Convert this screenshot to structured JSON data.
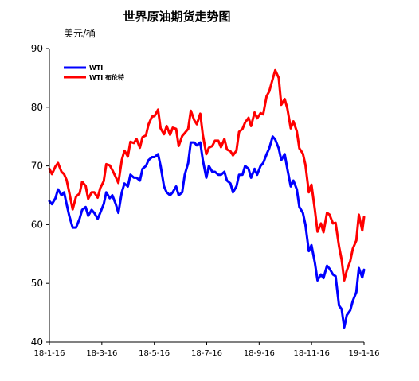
{
  "chart_data": {
    "type": "line",
    "title": "世界原油期货走势图",
    "ylabel": "美元/桶",
    "xlabel": "",
    "ylim": [
      40,
      90
    ],
    "yticks": [
      40,
      50,
      60,
      70,
      80,
      90
    ],
    "xlim": [
      "2018-01-16",
      "2019-01-16"
    ],
    "xticks": [
      "18-1-16",
      "18-3-16",
      "18-5-16",
      "18-7-16",
      "18-9-16",
      "18-11-16",
      "19-1-16"
    ],
    "grid": false,
    "legend": "top-left",
    "series": [
      {
        "name": "WTI",
        "color": "#0000ff",
        "points": [
          [
            "2018-01-16",
            64
          ],
          [
            "2018-01-19",
            63.5
          ],
          [
            "2018-01-23",
            64.5
          ],
          [
            "2018-01-26",
            66
          ],
          [
            "2018-01-30",
            65
          ],
          [
            "2018-02-02",
            65.5
          ],
          [
            "2018-02-05",
            63.5
          ],
          [
            "2018-02-08",
            61.5
          ],
          [
            "2018-02-12",
            59.5
          ],
          [
            "2018-02-16",
            59.5
          ],
          [
            "2018-02-20",
            61
          ],
          [
            "2018-02-23",
            62.5
          ],
          [
            "2018-02-27",
            63
          ],
          [
            "2018-03-02",
            61.5
          ],
          [
            "2018-03-06",
            62.5
          ],
          [
            "2018-03-09",
            62
          ],
          [
            "2018-03-13",
            61
          ],
          [
            "2018-03-16",
            62
          ],
          [
            "2018-03-20",
            63.5
          ],
          [
            "2018-03-23",
            65.5
          ],
          [
            "2018-03-27",
            64.5
          ],
          [
            "2018-03-30",
            65
          ],
          [
            "2018-04-03",
            63.5
          ],
          [
            "2018-04-06",
            62
          ],
          [
            "2018-04-10",
            65.5
          ],
          [
            "2018-04-13",
            67
          ],
          [
            "2018-04-17",
            66.5
          ],
          [
            "2018-04-20",
            68.5
          ],
          [
            "2018-04-24",
            68
          ],
          [
            "2018-04-27",
            68
          ],
          [
            "2018-05-01",
            67.5
          ],
          [
            "2018-05-04",
            69.5
          ],
          [
            "2018-05-08",
            70
          ],
          [
            "2018-05-11",
            71
          ],
          [
            "2018-05-15",
            71.5
          ],
          [
            "2018-05-18",
            71.5
          ],
          [
            "2018-05-22",
            72
          ],
          [
            "2018-05-25",
            70
          ],
          [
            "2018-05-29",
            66.5
          ],
          [
            "2018-06-01",
            65.5
          ],
          [
            "2018-06-05",
            65
          ],
          [
            "2018-06-08",
            65.5
          ],
          [
            "2018-06-12",
            66.5
          ],
          [
            "2018-06-15",
            65
          ],
          [
            "2018-06-19",
            65.5
          ],
          [
            "2018-06-22",
            68.5
          ],
          [
            "2018-06-26",
            70.5
          ],
          [
            "2018-06-29",
            74
          ],
          [
            "2018-07-03",
            74
          ],
          [
            "2018-07-06",
            73.5
          ],
          [
            "2018-07-10",
            74
          ],
          [
            "2018-07-13",
            71
          ],
          [
            "2018-07-17",
            68
          ],
          [
            "2018-07-20",
            70
          ],
          [
            "2018-07-24",
            69
          ],
          [
            "2018-07-27",
            69
          ],
          [
            "2018-07-31",
            68.5
          ],
          [
            "2018-08-03",
            68.5
          ],
          [
            "2018-08-07",
            69
          ],
          [
            "2018-08-10",
            67.5
          ],
          [
            "2018-08-14",
            67
          ],
          [
            "2018-08-17",
            65.5
          ],
          [
            "2018-08-21",
            66.5
          ],
          [
            "2018-08-24",
            68.5
          ],
          [
            "2018-08-28",
            68.5
          ],
          [
            "2018-08-31",
            70
          ],
          [
            "2018-09-04",
            69.5
          ],
          [
            "2018-09-07",
            68
          ],
          [
            "2018-09-11",
            69.5
          ],
          [
            "2018-09-14",
            68.5
          ],
          [
            "2018-09-18",
            70
          ],
          [
            "2018-09-21",
            70.5
          ],
          [
            "2018-09-25",
            72
          ],
          [
            "2018-09-28",
            73
          ],
          [
            "2018-10-02",
            75
          ],
          [
            "2018-10-05",
            74.5
          ],
          [
            "2018-10-09",
            73
          ],
          [
            "2018-10-12",
            71
          ],
          [
            "2018-10-16",
            72
          ],
          [
            "2018-10-19",
            69.5
          ],
          [
            "2018-10-23",
            66.5
          ],
          [
            "2018-10-26",
            67.5
          ],
          [
            "2018-10-30",
            66
          ],
          [
            "2018-11-02",
            63
          ],
          [
            "2018-11-06",
            62
          ],
          [
            "2018-11-09",
            60
          ],
          [
            "2018-11-13",
            55.5
          ],
          [
            "2018-11-16",
            56.5
          ],
          [
            "2018-11-20",
            53.5
          ],
          [
            "2018-11-23",
            50.5
          ],
          [
            "2018-11-27",
            51.5
          ],
          [
            "2018-11-30",
            50.9
          ],
          [
            "2018-12-04",
            53
          ],
          [
            "2018-12-07",
            52.5
          ],
          [
            "2018-12-11",
            51.5
          ],
          [
            "2018-12-14",
            51.2
          ],
          [
            "2018-12-18",
            46.2
          ],
          [
            "2018-12-21",
            45.6
          ],
          [
            "2018-12-24",
            42.5
          ],
          [
            "2018-12-27",
            44.6
          ],
          [
            "2018-12-31",
            45.4
          ],
          [
            "2019-01-03",
            47
          ],
          [
            "2019-01-07",
            48.5
          ],
          [
            "2019-01-10",
            52.6
          ],
          [
            "2019-01-14",
            51.0
          ],
          [
            "2019-01-16",
            52.3
          ]
        ]
      },
      {
        "name": "WTI 布伦特",
        "color": "#ff0000",
        "points": [
          [
            "2018-01-16",
            69.5
          ],
          [
            "2018-01-19",
            68.6
          ],
          [
            "2018-01-23",
            69.9
          ],
          [
            "2018-01-26",
            70.5
          ],
          [
            "2018-01-30",
            69
          ],
          [
            "2018-02-02",
            68.6
          ],
          [
            "2018-02-05",
            67.6
          ],
          [
            "2018-02-08",
            65.5
          ],
          [
            "2018-02-12",
            62.6
          ],
          [
            "2018-02-16",
            64.8
          ],
          [
            "2018-02-20",
            65.3
          ],
          [
            "2018-02-23",
            67.3
          ],
          [
            "2018-02-27",
            66.6
          ],
          [
            "2018-03-02",
            64.4
          ],
          [
            "2018-03-06",
            65.5
          ],
          [
            "2018-03-09",
            65.5
          ],
          [
            "2018-03-13",
            64.6
          ],
          [
            "2018-03-16",
            66.2
          ],
          [
            "2018-03-20",
            67.4
          ],
          [
            "2018-03-23",
            70.3
          ],
          [
            "2018-03-27",
            70.1
          ],
          [
            "2018-03-30",
            69.3
          ],
          [
            "2018-04-03",
            68.1
          ],
          [
            "2018-04-06",
            67.1
          ],
          [
            "2018-04-10",
            71
          ],
          [
            "2018-04-13",
            72.6
          ],
          [
            "2018-04-17",
            71.6
          ],
          [
            "2018-04-20",
            74.1
          ],
          [
            "2018-04-24",
            73.9
          ],
          [
            "2018-04-27",
            74.6
          ],
          [
            "2018-05-01",
            73.1
          ],
          [
            "2018-05-04",
            74.9
          ],
          [
            "2018-05-08",
            75.2
          ],
          [
            "2018-05-11",
            77.1
          ],
          [
            "2018-05-15",
            78.4
          ],
          [
            "2018-05-18",
            78.5
          ],
          [
            "2018-05-22",
            79.6
          ],
          [
            "2018-05-25",
            76.4
          ],
          [
            "2018-05-29",
            75.4
          ],
          [
            "2018-06-01",
            76.8
          ],
          [
            "2018-06-05",
            75.3
          ],
          [
            "2018-06-08",
            76.5
          ],
          [
            "2018-06-12",
            76.3
          ],
          [
            "2018-06-15",
            73.4
          ],
          [
            "2018-06-19",
            75.1
          ],
          [
            "2018-06-22",
            75.6
          ],
          [
            "2018-06-26",
            76.3
          ],
          [
            "2018-06-29",
            79.4
          ],
          [
            "2018-07-03",
            77.8
          ],
          [
            "2018-07-06",
            77.1
          ],
          [
            "2018-07-10",
            78.9
          ],
          [
            "2018-07-13",
            75.3
          ],
          [
            "2018-07-17",
            72
          ],
          [
            "2018-07-20",
            73.1
          ],
          [
            "2018-07-24",
            73.4
          ],
          [
            "2018-07-27",
            74.3
          ],
          [
            "2018-07-31",
            74.3
          ],
          [
            "2018-08-03",
            73.2
          ],
          [
            "2018-08-07",
            74.6
          ],
          [
            "2018-08-10",
            72.8
          ],
          [
            "2018-08-14",
            72.5
          ],
          [
            "2018-08-17",
            71.8
          ],
          [
            "2018-08-21",
            72.6
          ],
          [
            "2018-08-24",
            75.8
          ],
          [
            "2018-08-28",
            76.3
          ],
          [
            "2018-08-31",
            77.4
          ],
          [
            "2018-09-04",
            78.2
          ],
          [
            "2018-09-07",
            76.8
          ],
          [
            "2018-09-11",
            79.1
          ],
          [
            "2018-09-14",
            78.1
          ],
          [
            "2018-09-18",
            79
          ],
          [
            "2018-09-21",
            78.8
          ],
          [
            "2018-09-25",
            81.9
          ],
          [
            "2018-09-28",
            82.7
          ],
          [
            "2018-10-02",
            84.8
          ],
          [
            "2018-10-05",
            86.3
          ],
          [
            "2018-10-09",
            85
          ],
          [
            "2018-10-12",
            80.4
          ],
          [
            "2018-10-16",
            81.4
          ],
          [
            "2018-10-19",
            79.8
          ],
          [
            "2018-10-23",
            76.4
          ],
          [
            "2018-10-26",
            77.6
          ],
          [
            "2018-10-30",
            75.9
          ],
          [
            "2018-11-02",
            73
          ],
          [
            "2018-11-06",
            72.1
          ],
          [
            "2018-11-09",
            70.2
          ],
          [
            "2018-11-13",
            65.5
          ],
          [
            "2018-11-16",
            66.8
          ],
          [
            "2018-11-20",
            62.5
          ],
          [
            "2018-11-23",
            58.8
          ],
          [
            "2018-11-27",
            60.2
          ],
          [
            "2018-11-30",
            58.7
          ],
          [
            "2018-12-04",
            62
          ],
          [
            "2018-12-07",
            61.7
          ],
          [
            "2018-12-11",
            60.2
          ],
          [
            "2018-12-14",
            60.3
          ],
          [
            "2018-12-18",
            56.3
          ],
          [
            "2018-12-21",
            54
          ],
          [
            "2018-12-24",
            50.5
          ],
          [
            "2018-12-27",
            52.2
          ],
          [
            "2018-12-31",
            53.8
          ],
          [
            "2019-01-03",
            55.9
          ],
          [
            "2019-01-07",
            57.3
          ],
          [
            "2019-01-10",
            61.7
          ],
          [
            "2019-01-14",
            59
          ],
          [
            "2019-01-16",
            61.3
          ]
        ]
      }
    ]
  }
}
